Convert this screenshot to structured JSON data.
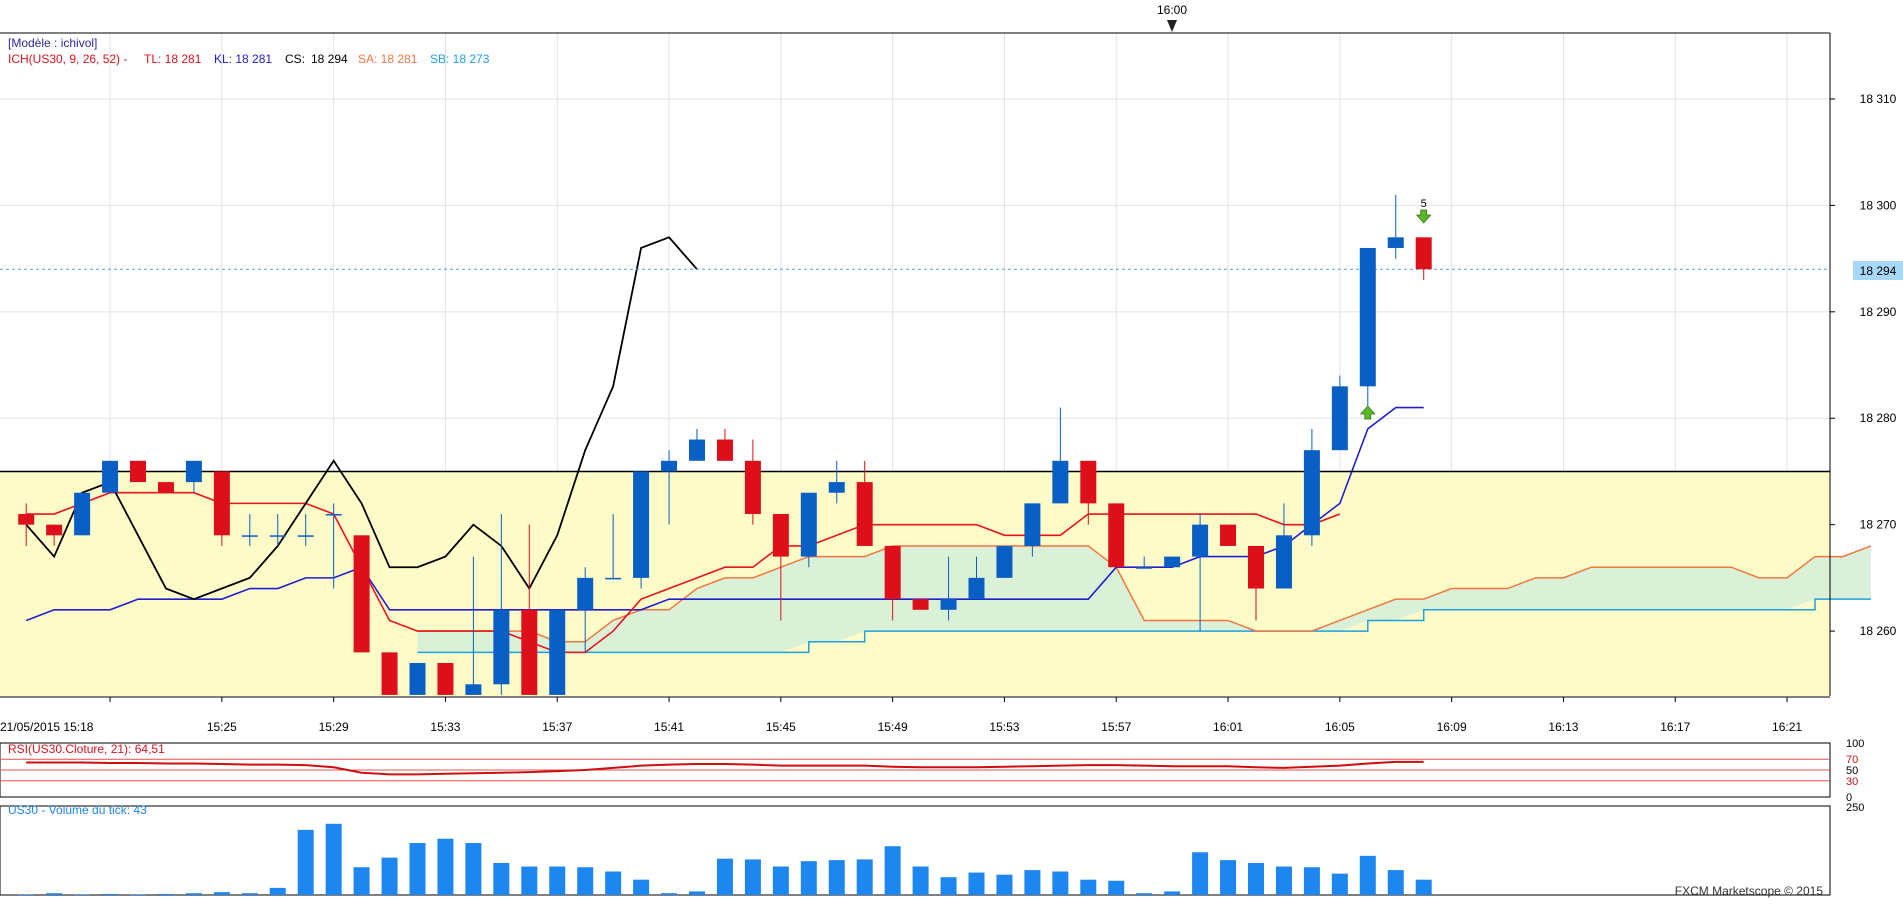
{
  "top_marker": {
    "time_label": "16:00"
  },
  "header": {
    "model_label": "[Modèle : ichivol]",
    "ich_label": "ICH(US30, 9, 26, 52) -",
    "tl_label": "TL: 18 281",
    "kl_label": "KL: 18 281",
    "cs_label": "CS:",
    "cs_value": "18 294",
    "sa_label": "SA: 18 281",
    "sb_label": "SB: 18 273"
  },
  "price_tag": "18 294",
  "signal_label": "5",
  "colors": {
    "bull": "#0a5fc4",
    "bear": "#dd0f1a",
    "tenkan": "#e8141e",
    "kijun": "#2020d0",
    "chikou": "#000000",
    "senkou_a": "#f07840",
    "senkou_b": "#20a0e0",
    "cloud_fill": "#d8efd8",
    "band_fill": "#fdfbc8",
    "volume": "#1e86ef",
    "rsi": "#cc1010",
    "rsi_text": "#d8141e",
    "volume_text": "#1e86ef"
  },
  "chart_data": [
    {
      "type": "candlestick",
      "title": "ICH(US30, 9, 26, 52)",
      "yticks": [
        "18 260",
        "18 270",
        "18 280",
        "18 290",
        "18 300",
        "18 310"
      ],
      "ytick_values": [
        18260,
        18270,
        18280,
        18290,
        18300,
        18310
      ],
      "ylim": [
        18253.9,
        18316.2
      ],
      "horizontal_line": 18275,
      "band": [
        18253.9,
        18275
      ],
      "last_price": 18294,
      "date_label": "21/05/2015 15:18",
      "xticks": [
        {
          "i": 7,
          "label": "15:25"
        },
        {
          "i": 11,
          "label": "15:29"
        },
        {
          "i": 15,
          "label": "15:33"
        },
        {
          "i": 19,
          "label": "15:37"
        },
        {
          "i": 23,
          "label": "15:41"
        },
        {
          "i": 27,
          "label": "15:45"
        },
        {
          "i": 31,
          "label": "15:49"
        },
        {
          "i": 35,
          "label": "15:53"
        },
        {
          "i": 39,
          "label": "15:57"
        },
        {
          "i": 43,
          "label": "16:01"
        },
        {
          "i": 47,
          "label": "16:05"
        },
        {
          "i": 51,
          "label": "16:09"
        },
        {
          "i": 55,
          "label": "16:13"
        },
        {
          "i": 59,
          "label": "16:17"
        },
        {
          "i": 63,
          "label": "16:21"
        }
      ],
      "candles": [
        {
          "o": 18271,
          "h": 18272,
          "l": 18268,
          "c": 18270
        },
        {
          "o": 18270,
          "h": 18270,
          "l": 18268,
          "c": 18269
        },
        {
          "o": 18269,
          "h": 18273,
          "l": 18269,
          "c": 18273
        },
        {
          "o": 18273,
          "h": 18276,
          "l": 18273,
          "c": 18276
        },
        {
          "o": 18276,
          "h": 18276,
          "l": 18274,
          "c": 18274
        },
        {
          "o": 18274,
          "h": 18274,
          "l": 18273,
          "c": 18273
        },
        {
          "o": 18274,
          "h": 18276,
          "l": 18273,
          "c": 18276
        },
        {
          "o": 18275,
          "h": 18275,
          "l": 18268,
          "c": 18269
        },
        {
          "o": 18269,
          "h": 18271,
          "l": 18268,
          "c": 18269
        },
        {
          "o": 18269,
          "h": 18271,
          "l": 18268,
          "c": 18269
        },
        {
          "o": 18269,
          "h": 18271,
          "l": 18268,
          "c": 18269
        },
        {
          "o": 18271,
          "h": 18272,
          "l": 18264,
          "c": 18271
        },
        {
          "o": 18269,
          "h": 18269,
          "l": 18258,
          "c": 18258
        },
        {
          "o": 18258,
          "h": 18258,
          "l": 18254,
          "c": 18254
        },
        {
          "o": 18254,
          "h": 18257,
          "l": 18254,
          "c": 18257
        },
        {
          "o": 18257,
          "h": 18257,
          "l": 18254,
          "c": 18254
        },
        {
          "o": 18254,
          "h": 18267,
          "l": 18254,
          "c": 18255
        },
        {
          "o": 18255,
          "h": 18271,
          "l": 18254,
          "c": 18262
        },
        {
          "o": 18262,
          "h": 18270,
          "l": 18254,
          "c": 18254
        },
        {
          "o": 18254,
          "h": 18262,
          "l": 18254,
          "c": 18262
        },
        {
          "o": 18262,
          "h": 18266,
          "l": 18258,
          "c": 18265
        },
        {
          "o": 18265,
          "h": 18271,
          "l": 18265,
          "c": 18265
        },
        {
          "o": 18265,
          "h": 18275,
          "l": 18264,
          "c": 18275
        },
        {
          "o": 18275,
          "h": 18277,
          "l": 18270,
          "c": 18276
        },
        {
          "o": 18276,
          "h": 18279,
          "l": 18276,
          "c": 18278
        },
        {
          "o": 18278,
          "h": 18279,
          "l": 18276,
          "c": 18276
        },
        {
          "o": 18276,
          "h": 18278,
          "l": 18270,
          "c": 18271
        },
        {
          "o": 18271,
          "h": 18271,
          "l": 18261,
          "c": 18267
        },
        {
          "o": 18267,
          "h": 18273,
          "l": 18266,
          "c": 18273
        },
        {
          "o": 18273,
          "h": 18276,
          "l": 18272,
          "c": 18274
        },
        {
          "o": 18274,
          "h": 18276,
          "l": 18268,
          "c": 18268
        },
        {
          "o": 18268,
          "h": 18268,
          "l": 18261,
          "c": 18263
        },
        {
          "o": 18263,
          "h": 18263,
          "l": 18262,
          "c": 18262
        },
        {
          "o": 18262,
          "h": 18267,
          "l": 18261,
          "c": 18263
        },
        {
          "o": 18263,
          "h": 18267,
          "l": 18263,
          "c": 18265
        },
        {
          "o": 18265,
          "h": 18268,
          "l": 18265,
          "c": 18268
        },
        {
          "o": 18268,
          "h": 18272,
          "l": 18267,
          "c": 18272
        },
        {
          "o": 18272,
          "h": 18281,
          "l": 18272,
          "c": 18276
        },
        {
          "o": 18276,
          "h": 18276,
          "l": 18270,
          "c": 18272
        },
        {
          "o": 18272,
          "h": 18272,
          "l": 18266,
          "c": 18266
        },
        {
          "o": 18266,
          "h": 18267,
          "l": 18266,
          "c": 18266
        },
        {
          "o": 18266,
          "h": 18267,
          "l": 18266,
          "c": 18267
        },
        {
          "o": 18267,
          "h": 18271,
          "l": 18260,
          "c": 18270
        },
        {
          "o": 18270,
          "h": 18270,
          "l": 18268,
          "c": 18268
        },
        {
          "o": 18268,
          "h": 18268,
          "l": 18261,
          "c": 18264
        },
        {
          "o": 18264,
          "h": 18272,
          "l": 18264,
          "c": 18269
        },
        {
          "o": 18269,
          "h": 18279,
          "l": 18268,
          "c": 18277
        },
        {
          "o": 18277,
          "h": 18284,
          "l": 18277,
          "c": 18283
        },
        {
          "o": 18283,
          "h": 18296,
          "l": 18281,
          "c": 18296
        },
        {
          "o": 18296,
          "h": 18301,
          "l": 18295,
          "c": 18297
        },
        {
          "o": 18297,
          "h": 18297,
          "l": 18293,
          "c": 18294
        }
      ],
      "tenkan": [
        18271,
        18271,
        18272,
        18273,
        18273,
        18273,
        18273,
        18272,
        18272,
        18272,
        18272,
        18271,
        18266,
        18261,
        18260,
        18260,
        18260,
        18260,
        18259,
        18258,
        18258,
        18260,
        18263,
        18264,
        18265,
        18266,
        18266,
        18268,
        18268,
        18269,
        18270,
        18270,
        18270,
        18270,
        18270,
        18269,
        18269,
        18269,
        18271,
        18271,
        18271,
        18271,
        18271,
        18271,
        18271,
        18270,
        18270,
        18271,
        null,
        null,
        null
      ],
      "kijun": [
        18261,
        18262,
        18262,
        18262,
        18263,
        18263,
        18263,
        18263,
        18264,
        18264,
        18265,
        18265,
        18266,
        18262,
        18262,
        18262,
        18262,
        18262,
        18262,
        18262,
        18262,
        18262,
        18262,
        18263,
        18263,
        18263,
        18263,
        18263,
        18263,
        18263,
        18263,
        18263,
        18263,
        18263,
        18263,
        18263,
        18263,
        18263,
        18263,
        18266,
        18266,
        18266,
        18267,
        18267,
        18267,
        18268,
        18270,
        18272,
        18279,
        18281,
        18281
      ],
      "chikou": [
        18270,
        18267,
        18273,
        18274,
        18269,
        18264,
        18263,
        18264,
        18265,
        18268,
        18272,
        18276,
        18272,
        18266,
        18266,
        18267,
        18270,
        18268,
        18264,
        18269,
        18277,
        18283,
        18296,
        18297,
        18294
      ],
      "senkou_a": [
        null,
        null,
        null,
        null,
        null,
        null,
        null,
        null,
        null,
        null,
        null,
        null,
        null,
        null,
        18260,
        18260,
        18260,
        18260,
        18260,
        18259,
        18259,
        18261,
        18262,
        18262,
        18264,
        18265,
        18265,
        18266,
        18267,
        18267,
        18267,
        18268,
        18268,
        18268,
        18268,
        18268,
        18268,
        18268,
        18268,
        18266,
        18261,
        18261,
        18261,
        18261,
        18260,
        18260,
        18260,
        18261,
        18262,
        18263,
        18263,
        18264,
        18264,
        18264,
        18265,
        18265,
        18266,
        18266,
        18266,
        18266,
        18266,
        18266,
        18265,
        18265,
        18267,
        18267,
        18268
      ],
      "senkou_b": [
        null,
        null,
        null,
        null,
        null,
        null,
        null,
        null,
        null,
        null,
        null,
        null,
        null,
        null,
        18258,
        18258,
        18258,
        18258,
        18258,
        18258,
        18258,
        18258,
        18258,
        18258,
        18258,
        18258,
        18258,
        18258,
        18259,
        18259,
        18260,
        18260,
        18260,
        18260,
        18260,
        18260,
        18260,
        18260,
        18260,
        18260,
        18260,
        18260,
        18260,
        18260,
        18260,
        18260,
        18260,
        18260,
        18261,
        18261,
        18262,
        18262,
        18262,
        18262,
        18262,
        18262,
        18262,
        18262,
        18262,
        18262,
        18262,
        18262,
        18262,
        18262,
        18263,
        18263,
        18263
      ],
      "signals": [
        {
          "i": 48,
          "dir": "up",
          "price": 18280.5
        },
        {
          "i": 50,
          "dir": "down",
          "price": 18299
        }
      ]
    },
    {
      "type": "line",
      "title": "RSI(US30.Cloture, 21): 64,51",
      "yticks": [
        "100",
        "70",
        "50",
        "30",
        "0"
      ],
      "ytick_values": [
        100,
        70,
        50,
        30,
        0
      ],
      "ylim": [
        0,
        100
      ],
      "levels": [
        70,
        50,
        30
      ],
      "values": [
        64,
        64,
        64,
        63,
        63,
        62,
        62,
        61,
        60,
        60,
        59,
        55,
        45,
        42,
        42,
        43,
        44,
        45,
        46,
        48,
        50,
        54,
        58,
        60,
        61,
        61,
        60,
        58,
        58,
        58,
        58,
        56,
        55,
        55,
        55,
        56,
        57,
        58,
        59,
        59,
        58,
        57,
        57,
        57,
        55,
        54,
        56,
        58,
        62,
        65,
        65
      ]
    },
    {
      "type": "bar",
      "title": "US30 - Volume du tick: 43",
      "yticks": [
        "250"
      ],
      "ytick_values": [
        250
      ],
      "ylim": [
        0,
        250
      ],
      "values": [
        2,
        5,
        2,
        3,
        2,
        3,
        5,
        8,
        5,
        20,
        183,
        200,
        78,
        105,
        146,
        158,
        146,
        90,
        80,
        80,
        78,
        66,
        43,
        5,
        10,
        102,
        100,
        80,
        95,
        98,
        100,
        137,
        80,
        50,
        63,
        57,
        70,
        66,
        43,
        40,
        5,
        10,
        120,
        98,
        90,
        80,
        78,
        60,
        110,
        70,
        43
      ]
    }
  ],
  "watermark": "FXCM Marketscope © 2015"
}
